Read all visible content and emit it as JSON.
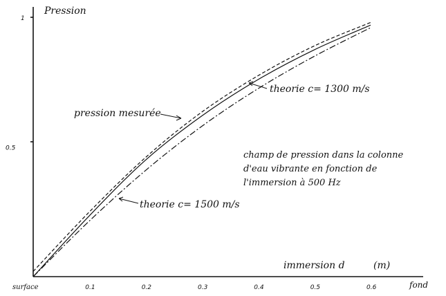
{
  "chart_data": {
    "type": "line",
    "title": "",
    "ylabel": "Pression",
    "xlabel": "immersion d",
    "xlabel_unit": "(m)",
    "x_start_label": "surface",
    "x_end_label": "fond",
    "xlim": [
      0,
      0.6
    ],
    "ylim": [
      0,
      1
    ],
    "grid": false,
    "x_ticks": [
      {
        "value": 0.1,
        "label": "0.1"
      },
      {
        "value": 0.2,
        "label": "0.2"
      },
      {
        "value": 0.3,
        "label": "0.3"
      },
      {
        "value": 0.4,
        "label": "0.4"
      },
      {
        "value": 0.5,
        "label": "0.5"
      },
      {
        "value": 0.6,
        "label": "0.6"
      }
    ],
    "y_ticks": [
      {
        "value": 0.5,
        "label": "0.5"
      },
      {
        "value": 1,
        "label": "1"
      }
    ],
    "series": [
      {
        "name": "pression mesurée",
        "style": "solid",
        "x": [
          0,
          0.1,
          0.2,
          0.3,
          0.4,
          0.5,
          0.6
        ],
        "y": [
          0,
          0.235,
          0.45,
          0.62,
          0.76,
          0.875,
          0.97
        ]
      },
      {
        "name": "theorie c= 1300 m/s",
        "style": "dashed",
        "x": [
          0,
          0.1,
          0.2,
          0.3,
          0.4,
          0.5,
          0.6
        ],
        "y": [
          0.02,
          0.25,
          0.46,
          0.635,
          0.775,
          0.89,
          0.98
        ]
      },
      {
        "name": "theorie c= 1500 m/s",
        "style": "dashdot",
        "x": [
          0,
          0.1,
          0.2,
          0.3,
          0.4,
          0.5,
          0.6
        ],
        "y": [
          0,
          0.215,
          0.41,
          0.58,
          0.725,
          0.85,
          0.96
        ]
      }
    ],
    "annotation": [
      "champ de pression dans la colonne",
      "d'eau vibrante en fonction de",
      "l'immersion à 500 Hz"
    ]
  }
}
